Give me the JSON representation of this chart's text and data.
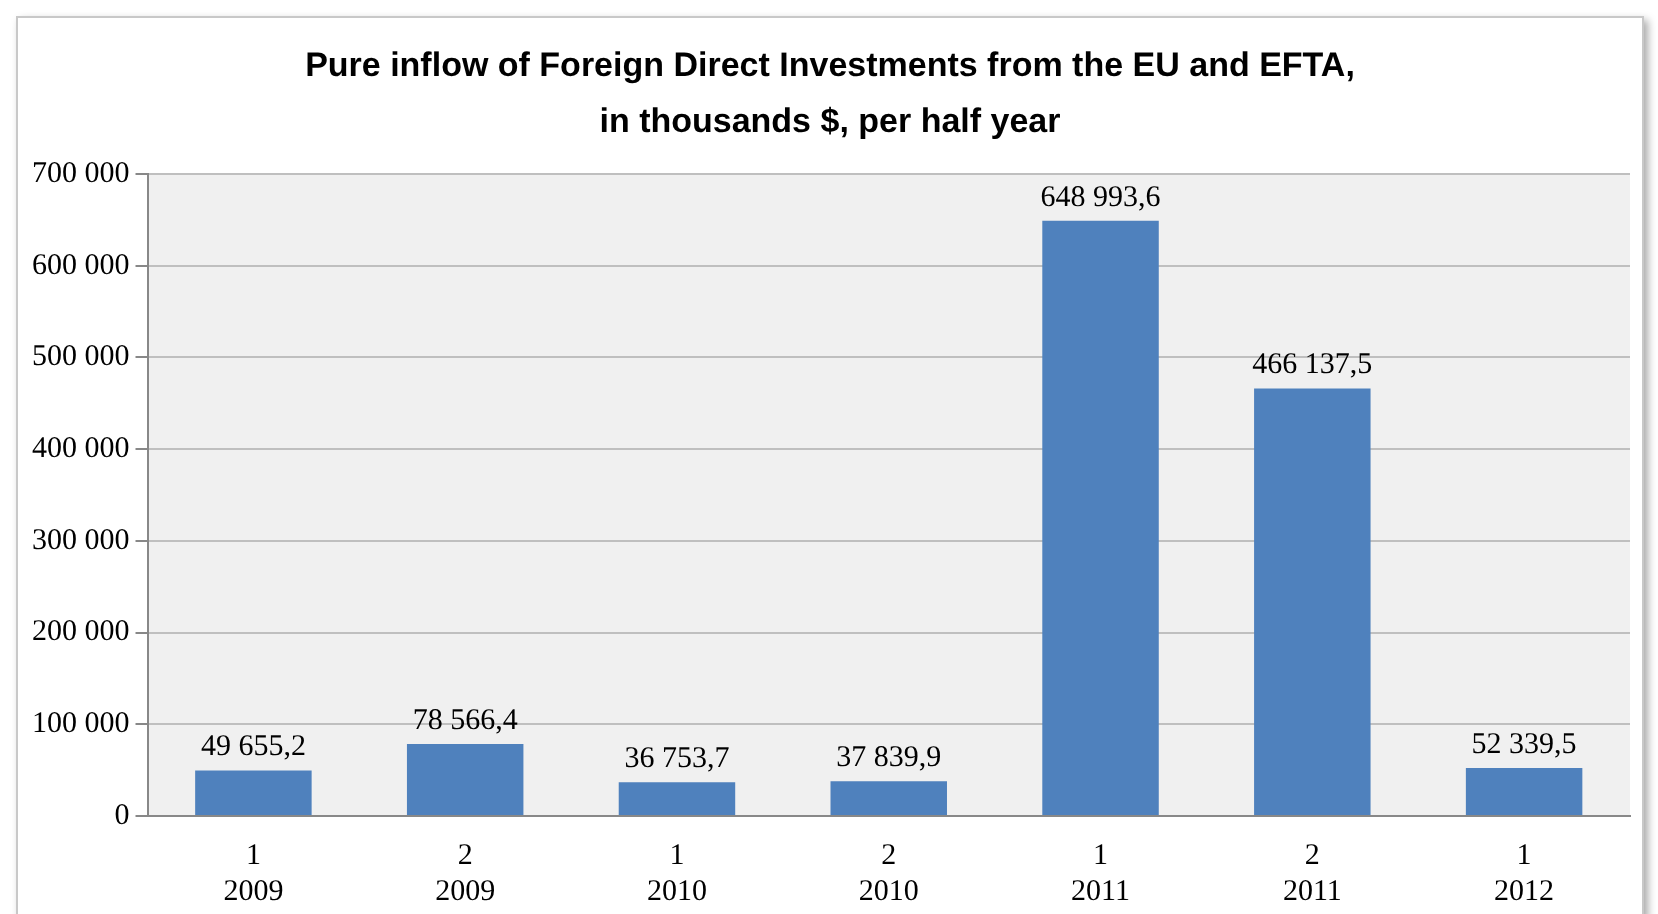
{
  "chart_data": {
    "type": "bar",
    "title": "Pure inflow of Foreign Direct Investments from the EU and EFTA,\nin thousands $, per half year",
    "categories": [
      "1\n2009",
      "2\n2009",
      "1\n2010",
      "2\n2010",
      "1\n2011",
      "2\n2011",
      "1\n2012"
    ],
    "values": [
      49655.2,
      78566.4,
      36753.7,
      37839.9,
      648993.6,
      466137.5,
      52339.5
    ],
    "value_labels": [
      "49 655,2",
      "78 566,4",
      "36 753,7",
      "37 839,9",
      "648 993,6",
      "466 137,5",
      "52 339,5"
    ],
    "color": "#4f81bd",
    "ylim": [
      0,
      700000
    ],
    "yticks": [
      {
        "value": 0,
        "label": "0"
      },
      {
        "value": 100000,
        "label": "100 000"
      },
      {
        "value": 200000,
        "label": "200 000"
      },
      {
        "value": 300000,
        "label": "300 000"
      },
      {
        "value": 400000,
        "label": "400 000"
      },
      {
        "value": 500000,
        "label": "500 000"
      },
      {
        "value": 600000,
        "label": "600 000"
      },
      {
        "value": 700000,
        "label": "700 000"
      }
    ],
    "grid": "y",
    "legend": false
  }
}
